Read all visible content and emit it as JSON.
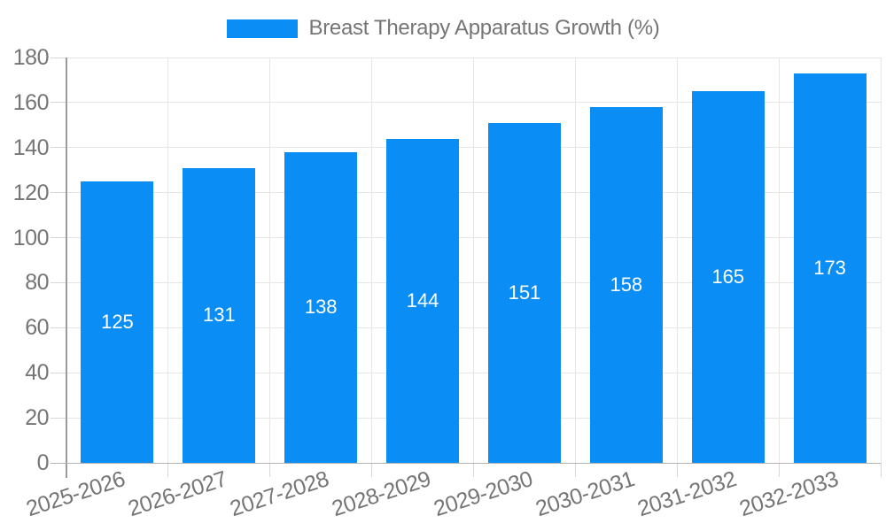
{
  "chart_data": {
    "type": "bar",
    "title": "Breast Therapy Apparatus Growth (%)",
    "legend_label": "Breast Therapy Apparatus Growth (%)",
    "categories": [
      "2025-2026",
      "2026-2027",
      "2027-2028",
      "2028-2029",
      "2029-2030",
      "2030-2031",
      "2031-2032",
      "2032-2033"
    ],
    "values": [
      125,
      131,
      138,
      144,
      151,
      158,
      165,
      173
    ],
    "value_labels": [
      "125",
      "131",
      "138",
      "144",
      "151",
      "158",
      "165",
      "173"
    ],
    "xlabel": "",
    "ylabel": "",
    "ylim": [
      0,
      180
    ],
    "ytick_step": 20,
    "yticks": [
      "0",
      "20",
      "40",
      "60",
      "80",
      "100",
      "120",
      "140",
      "160",
      "180"
    ],
    "grid": true,
    "legend_position": "top-center",
    "colors": {
      "bar": "#0a8df5",
      "value_label": "#ffffff",
      "axis_text": "#757575",
      "gridline": "#e6e6e6",
      "axis_line": "#9a9a9a",
      "baseline": "#b3b3b3"
    }
  }
}
